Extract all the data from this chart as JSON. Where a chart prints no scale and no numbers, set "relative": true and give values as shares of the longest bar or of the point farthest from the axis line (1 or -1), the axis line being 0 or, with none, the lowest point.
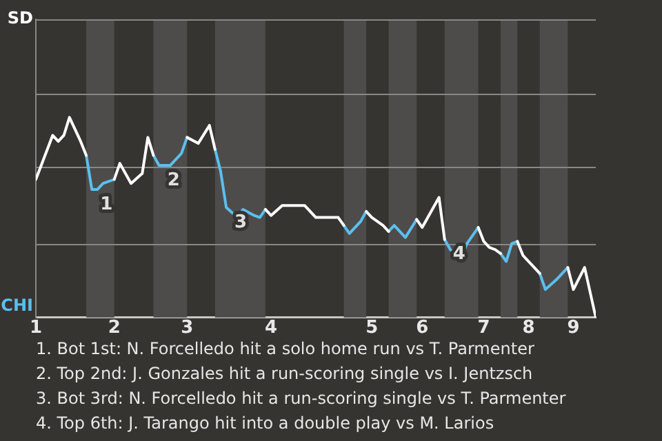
{
  "chart_data": {
    "type": "line",
    "relative": true,
    "categories": [
      "1",
      null,
      null,
      null,
      null,
      null,
      null,
      null,
      null,
      null,
      null,
      null,
      null,
      null,
      "2",
      null,
      null,
      null,
      null,
      null,
      null,
      null,
      null,
      null,
      null,
      null,
      null,
      "3",
      null,
      null,
      null,
      null,
      null,
      null,
      null,
      null,
      null,
      null,
      null,
      null,
      null,
      null,
      "4",
      null,
      null,
      null,
      null,
      null,
      null,
      null,
      null,
      null,
      null,
      null,
      null,
      null,
      null,
      null,
      null,
      null,
      "5",
      null,
      null,
      null,
      null,
      null,
      null,
      null,
      null,
      "6",
      null,
      null,
      null,
      null,
      null,
      null,
      null,
      null,
      null,
      null,
      "7",
      null,
      null,
      null,
      null,
      null,
      null,
      null,
      "8",
      null,
      null,
      null,
      null,
      null,
      null,
      null,
      "9",
      null,
      null,
      null,
      null
    ],
    "series": [
      {
        "color": "#ffffff",
        "values": [
          0.69,
          null,
          null,
          0.91,
          0.88,
          0.91,
          1,
          null,
          0.88,
          0.81,
          null,
          null,
          null,
          null,
          0.69,
          0.77,
          0.72,
          0.67,
          null,
          0.72,
          0.9,
          0.81,
          null,
          null,
          null,
          null,
          null,
          0.9,
          null,
          0.87,
          null,
          0.96,
          0.84,
          null,
          null,
          null,
          null,
          null,
          null,
          null,
          null,
          0.54,
          0.51,
          null,
          0.56,
          null,
          null,
          null,
          0.56,
          null,
          0.5,
          null,
          null,
          null,
          0.5,
          0.46,
          null,
          null,
          null,
          0.53,
          0.5,
          null,
          0.46,
          0.43,
          null,
          null,
          null,
          null,
          0.49,
          0.45,
          null,
          null,
          0.6,
          0.39,
          null,
          null,
          null,
          null,
          null,
          0.45,
          0.38,
          0.35,
          0.34,
          0.32,
          null,
          null,
          0.38,
          0.31,
          null,
          0.25,
          0.22,
          null,
          null,
          null,
          null,
          0.25,
          0.14,
          null,
          0.25,
          null,
          0
        ]
      },
      {
        "color": "#5bbff0",
        "values": [
          null,
          null,
          null,
          null,
          null,
          null,
          null,
          null,
          null,
          0.81,
          0.64,
          0.64,
          0.67,
          null,
          0.69,
          null,
          null,
          null,
          null,
          null,
          null,
          0.81,
          0.76,
          null,
          0.76,
          null,
          0.82,
          0.9,
          null,
          null,
          null,
          null,
          0.84,
          0.73,
          0.55,
          null,
          0.5,
          0.54,
          null,
          0.51,
          0.5,
          0.54,
          null,
          null,
          null,
          null,
          null,
          null,
          null,
          null,
          null,
          null,
          null,
          null,
          null,
          0.46,
          0.42,
          null,
          0.48,
          0.53,
          null,
          null,
          null,
          0.43,
          0.46,
          null,
          0.4,
          null,
          0.49,
          null,
          null,
          null,
          null,
          0.39,
          0.34,
          null,
          0.3,
          0.37,
          null,
          0.45,
          null,
          null,
          null,
          0.32,
          0.28,
          0.37,
          0.38,
          null,
          null,
          null,
          0.22,
          0.14,
          null,
          0.19,
          null,
          0.25,
          null,
          null,
          null,
          null,
          null
        ]
      }
    ],
    "ref_lines": [
      {
        "axis": "y",
        "value": 0.37,
        "color": "#8a8886"
      },
      {
        "axis": "y",
        "value": 0.75,
        "color": "#8a8886"
      },
      {
        "axis": "y",
        "value": 1.12,
        "color": "#8a8886"
      },
      {
        "axis": "y",
        "value": 1.49,
        "color": "#8a8886"
      }
    ],
    "legend": false,
    "marker": "none",
    "annotations": [
      "SD",
      "CHI",
      {
        "text": "1",
        "y": 0.64
      },
      {
        "text": "2",
        "y": 0.76
      },
      {
        "text": "3",
        "y": 0.55
      },
      {
        "text": "4",
        "y": 0.39
      },
      "1. Bot 1st: N. Forcelledo hit a solo home run vs T. Parmenter",
      "2. Top 2nd: J. Gonzales hit a run-scoring single vs I. Jentzsch",
      "3. Bot 3rd: N. Forcelledo hit a run-scoring single vs T. Parmenter",
      "4. Top 6th: J. Tarango hit into a double play vs M. Larios"
    ]
  }
}
